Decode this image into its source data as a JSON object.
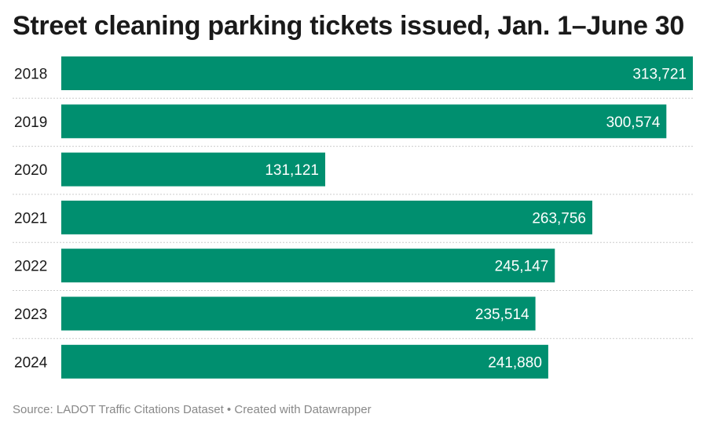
{
  "header": {
    "title": "Street cleaning parking tickets issued, Jan. 1–June 30"
  },
  "footer": {
    "source_label": "Source:",
    "source_name": "LADOT Traffic Citations Dataset",
    "separator": "•",
    "credit": "Created with Datawrapper"
  },
  "colors": {
    "bar": "#008f6f",
    "divider": "#cccccc"
  },
  "chart_data": {
    "type": "bar",
    "orientation": "horizontal",
    "categories": [
      "2018",
      "2019",
      "2020",
      "2021",
      "2022",
      "2023",
      "2024"
    ],
    "values": [
      313721,
      300574,
      131121,
      263756,
      245147,
      235514,
      241880
    ],
    "value_labels": [
      "313,721",
      "300,574",
      "131,121",
      "263,756",
      "245,147",
      "235,514",
      "241,880"
    ],
    "title": "Street cleaning parking tickets issued, Jan. 1–June 30",
    "xlabel": "",
    "ylabel": "",
    "xlim": [
      0,
      313721
    ],
    "grid": false,
    "legend": "none"
  }
}
